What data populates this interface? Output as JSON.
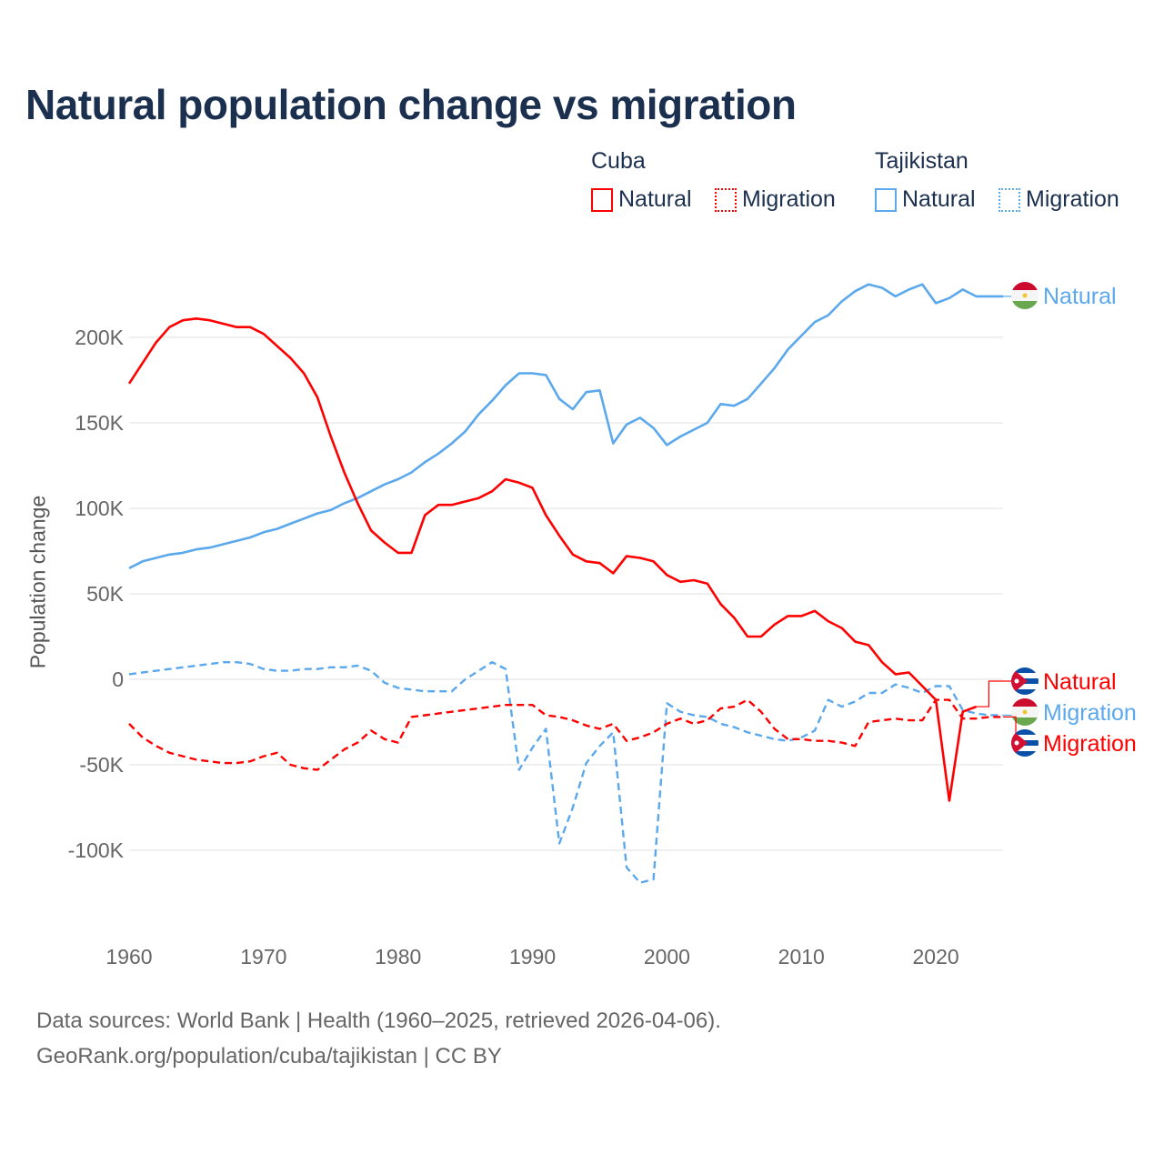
{
  "chart_data": {
    "type": "line",
    "title": "Natural population change vs migration",
    "ylabel": "Population change",
    "xlabel": "",
    "xlim": [
      1960,
      2025
    ],
    "ylim": [
      -140000,
      240000
    ],
    "x_ticks": [
      1960,
      1970,
      1980,
      1990,
      2000,
      2010,
      2020
    ],
    "x_tick_labels": [
      "1960",
      "1970",
      "1980",
      "1990",
      "2000",
      "2010",
      "2020"
    ],
    "y_ticks": [
      200000,
      150000,
      100000,
      50000,
      0,
      -50000,
      -100000
    ],
    "y_tick_labels": [
      "200K",
      "150K",
      "100K",
      "50K",
      "0",
      "-50K",
      "-100K"
    ],
    "grid": true,
    "legend": {
      "placement": "top-right",
      "groups": [
        {
          "country": "Cuba",
          "items": [
            "Natural",
            "Migration"
          ]
        },
        {
          "country": "Tajikistan",
          "items": [
            "Natural",
            "Migration"
          ]
        }
      ]
    },
    "series": [
      {
        "name": "Cuba Natural",
        "country": "Cuba",
        "kind": "Natural",
        "label": "Natural",
        "color": "#ff0000",
        "dash": false,
        "start": 1960,
        "values_k": [
          173,
          185,
          197,
          206,
          210,
          211,
          210,
          208,
          206,
          206,
          202,
          195,
          188,
          179,
          165,
          142,
          121,
          103,
          87,
          80,
          74,
          74,
          96,
          102,
          102,
          104,
          106,
          110,
          117,
          115,
          112,
          96,
          84,
          73,
          69,
          68,
          62,
          72,
          71,
          69,
          61,
          57,
          58,
          56,
          44,
          36,
          25,
          25,
          32,
          37,
          37,
          40,
          34,
          30,
          22,
          20,
          10,
          3,
          4,
          -4,
          -12,
          -71,
          -19,
          -16
        ]
      },
      {
        "name": "Cuba Migration",
        "country": "Cuba",
        "kind": "Migration",
        "label": "Migration",
        "color": "#ff0000",
        "dash": true,
        "start": 1960,
        "values_k": [
          -26,
          -34,
          -39,
          -43,
          -45,
          -47,
          -48,
          -49,
          -49,
          -48,
          -45,
          -43,
          -50,
          -52,
          -53,
          -47,
          -41,
          -37,
          -30,
          -35,
          -37,
          -22,
          -21,
          -20,
          -19,
          -18,
          -17,
          -16,
          -15,
          -15,
          -15,
          -21,
          -22,
          -24,
          -27,
          -29,
          -26,
          -36,
          -34,
          -31,
          -26,
          -23,
          -26,
          -24,
          -17,
          -16,
          -12,
          -19,
          -29,
          -35,
          -35,
          -36,
          -36,
          -37,
          -39,
          -25,
          -24,
          -23,
          -24,
          -24,
          -12,
          -12,
          -23,
          -23,
          -22,
          -22
        ]
      },
      {
        "name": "Tajikistan Natural",
        "country": "Tajikistan",
        "kind": "Natural",
        "label": "Natural",
        "color": "#5ba8ec",
        "dash": false,
        "start": 1960,
        "values_k": [
          65,
          69,
          71,
          73,
          74,
          76,
          77,
          79,
          81,
          83,
          86,
          88,
          91,
          94,
          97,
          99,
          103,
          106,
          110,
          114,
          117,
          121,
          127,
          132,
          138,
          145,
          155,
          163,
          172,
          179,
          179,
          178,
          164,
          158,
          168,
          169,
          138,
          149,
          153,
          147,
          137,
          142,
          146,
          150,
          161,
          160,
          164,
          173,
          182,
          193,
          201,
          209,
          213,
          221,
          227,
          231,
          229,
          224,
          228,
          231,
          220,
          223,
          228,
          224,
          224,
          224
        ]
      },
      {
        "name": "Tajikistan Migration",
        "country": "Tajikistan",
        "kind": "Migration",
        "label": "Migration",
        "color": "#5ba8ec",
        "dash": true,
        "start": 1960,
        "values_k": [
          3,
          4,
          5,
          6,
          7,
          8,
          9,
          10,
          10,
          9,
          6,
          5,
          5,
          6,
          6,
          7,
          7,
          8,
          5,
          -2,
          -5,
          -6,
          -7,
          -7,
          -7,
          0,
          5,
          10,
          6,
          -53,
          -40,
          -29,
          -96,
          -75,
          -49,
          -39,
          -31,
          -110,
          -119,
          -117,
          -14,
          -19,
          -21,
          -22,
          -26,
          -28,
          -31,
          -33,
          -35,
          -36,
          -34,
          -30,
          -12,
          -16,
          -13,
          -8,
          -8,
          -3,
          -5,
          -8,
          -4,
          -4,
          -18,
          -20,
          -21,
          -21
        ]
      }
    ]
  },
  "footer": {
    "line1": "Data sources: World Bank | Health (1960–2025, retrieved 2026-04-06).",
    "line2": "GeoRank.org/population/cuba/tajikistan | CC BY"
  }
}
